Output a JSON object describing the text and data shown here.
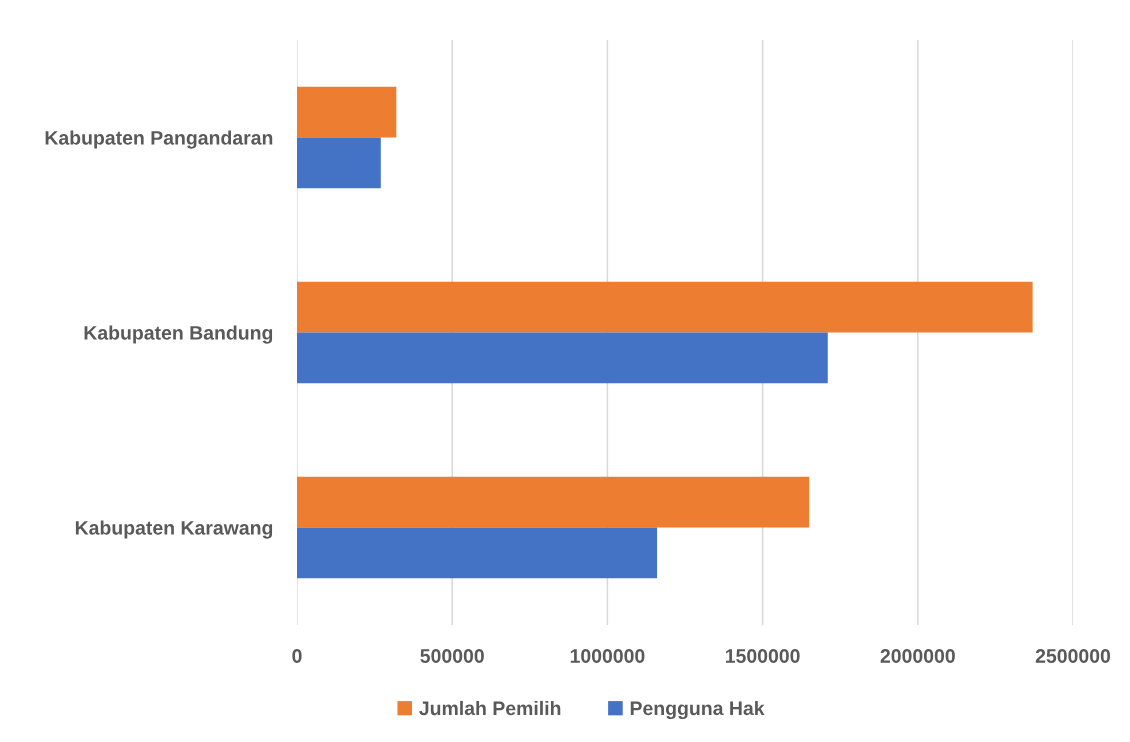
{
  "chart_data": {
    "type": "bar",
    "orientation": "horizontal",
    "categories": [
      "Kabupaten Pangandaran",
      "Kabupaten Bandung",
      "Kabupaten Karawang"
    ],
    "series": [
      {
        "name": "Jumlah Pemilih",
        "color": "#ed7d31",
        "values": [
          320000,
          2370000,
          1650000
        ]
      },
      {
        "name": "Pengguna Hak",
        "color": "#4472c4",
        "values": [
          270000,
          1710000,
          1160000
        ]
      }
    ],
    "xlim": [
      0,
      2500000
    ],
    "xticks": [
      0,
      500000,
      1000000,
      1500000,
      2000000,
      2500000
    ],
    "grid": "x",
    "legend": "bottom"
  }
}
